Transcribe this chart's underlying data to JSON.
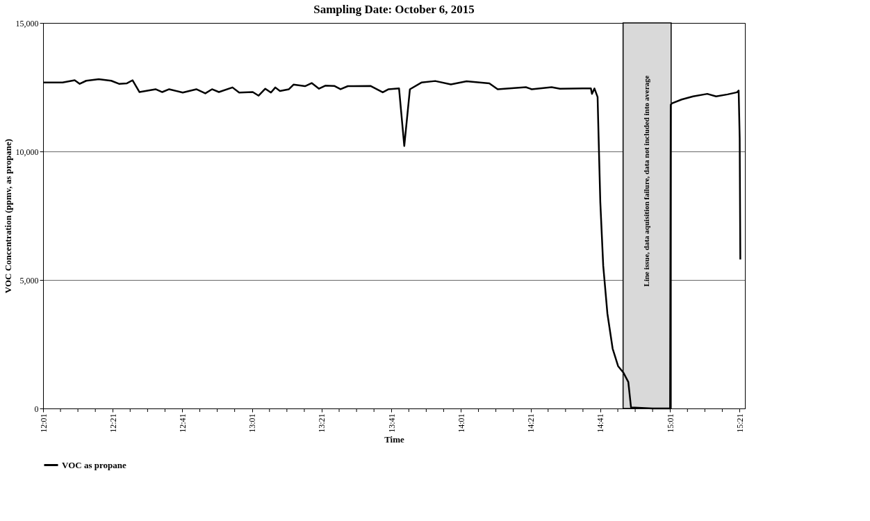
{
  "chart_data": {
    "type": "line",
    "title": "Sampling Date: October 6, 2015",
    "xlabel": "Time",
    "ylabel": "VOC Concentration (ppmv, as propane)",
    "x": [
      12.018,
      12.11,
      12.168,
      12.192,
      12.223,
      12.283,
      12.343,
      12.38,
      12.418,
      12.445,
      12.478,
      12.555,
      12.587,
      12.62,
      12.685,
      12.75,
      12.793,
      12.825,
      12.858,
      12.923,
      12.955,
      13.02,
      13.048,
      13.08,
      13.107,
      13.128,
      13.15,
      13.193,
      13.215,
      13.27,
      13.302,
      13.337,
      13.367,
      13.41,
      13.44,
      13.475,
      13.583,
      13.642,
      13.67,
      13.72,
      13.745,
      13.772,
      13.827,
      13.893,
      13.968,
      14.043,
      14.152,
      14.192,
      14.327,
      14.355,
      14.45,
      14.49,
      14.6,
      14.638,
      14.643,
      14.655,
      14.67,
      14.675,
      14.683,
      14.697,
      14.717,
      14.742,
      14.768,
      14.793,
      14.817,
      14.83,
      14.933,
      15.017,
      15.02,
      15.025,
      15.072,
      15.127,
      15.195,
      15.237,
      15.292,
      15.337,
      15.345,
      15.35,
      15.353
    ],
    "series": [
      {
        "name": "VOC as propane",
        "color": "#000000",
        "values": [
          12680,
          12680,
          12770,
          12630,
          12750,
          12810,
          12750,
          12630,
          12650,
          12770,
          12310,
          12420,
          12310,
          12420,
          12290,
          12420,
          12260,
          12420,
          12310,
          12490,
          12290,
          12310,
          12170,
          12440,
          12290,
          12490,
          12350,
          12420,
          12600,
          12540,
          12660,
          12440,
          12560,
          12550,
          12420,
          12540,
          12550,
          12300,
          12420,
          12450,
          10210,
          12420,
          12680,
          12740,
          12610,
          12730,
          12650,
          12420,
          12500,
          12420,
          12500,
          12440,
          12450,
          12450,
          12240,
          12450,
          12120,
          10510,
          8030,
          5550,
          3690,
          2330,
          1650,
          1400,
          1030,
          40,
          0,
          0,
          11810,
          11870,
          12020,
          12140,
          12240,
          12140,
          12220,
          12300,
          12370,
          10510,
          5800
        ]
      }
    ],
    "xlim": [
      12.0167,
      15.375
    ],
    "xticks": [
      {
        "value": 12.0167,
        "label": "12:01"
      },
      {
        "value": 12.1,
        "label": null
      },
      {
        "value": 12.1833,
        "label": null
      },
      {
        "value": 12.2667,
        "label": null
      },
      {
        "value": 12.35,
        "label": "12:21"
      },
      {
        "value": 12.4333,
        "label": null
      },
      {
        "value": 12.5167,
        "label": null
      },
      {
        "value": 12.6,
        "label": null
      },
      {
        "value": 12.6833,
        "label": "12:41"
      },
      {
        "value": 12.7667,
        "label": null
      },
      {
        "value": 12.85,
        "label": null
      },
      {
        "value": 12.9333,
        "label": null
      },
      {
        "value": 13.0167,
        "label": "13:01"
      },
      {
        "value": 13.1,
        "label": null
      },
      {
        "value": 13.1833,
        "label": null
      },
      {
        "value": 13.2667,
        "label": null
      },
      {
        "value": 13.35,
        "label": "13:21"
      },
      {
        "value": 13.4333,
        "label": null
      },
      {
        "value": 13.5167,
        "label": null
      },
      {
        "value": 13.6,
        "label": null
      },
      {
        "value": 13.6833,
        "label": "13:41"
      },
      {
        "value": 13.7667,
        "label": null
      },
      {
        "value": 13.85,
        "label": null
      },
      {
        "value": 13.9333,
        "label": null
      },
      {
        "value": 14.0167,
        "label": "14:01"
      },
      {
        "value": 14.1,
        "label": null
      },
      {
        "value": 14.1833,
        "label": null
      },
      {
        "value": 14.2667,
        "label": null
      },
      {
        "value": 14.35,
        "label": "14:21"
      },
      {
        "value": 14.4333,
        "label": null
      },
      {
        "value": 14.5167,
        "label": null
      },
      {
        "value": 14.6,
        "label": null
      },
      {
        "value": 14.6833,
        "label": "14:41"
      },
      {
        "value": 14.7667,
        "label": null
      },
      {
        "value": 14.85,
        "label": null
      },
      {
        "value": 14.9333,
        "label": null
      },
      {
        "value": 15.0167,
        "label": "15:01"
      },
      {
        "value": 15.1,
        "label": null
      },
      {
        "value": 15.1833,
        "label": null
      },
      {
        "value": 15.2667,
        "label": null
      },
      {
        "value": 15.35,
        "label": "15:21"
      }
    ],
    "ylim": [
      0,
      15000
    ],
    "yticks": [
      {
        "value": 0,
        "label": "0"
      },
      {
        "value": 5000,
        "label": "5,000"
      },
      {
        "value": 10000,
        "label": "10,000"
      },
      {
        "value": 15000,
        "label": "15,000"
      }
    ],
    "bands": [
      {
        "axis": "x",
        "from": 14.792,
        "to": 15.022,
        "label": "Line issue, data aquisition failure, data not included into average",
        "color": "#d9d9d9"
      }
    ],
    "grid": "y",
    "legend": "bottom",
    "line_style": "solid",
    "marker": "none"
  }
}
